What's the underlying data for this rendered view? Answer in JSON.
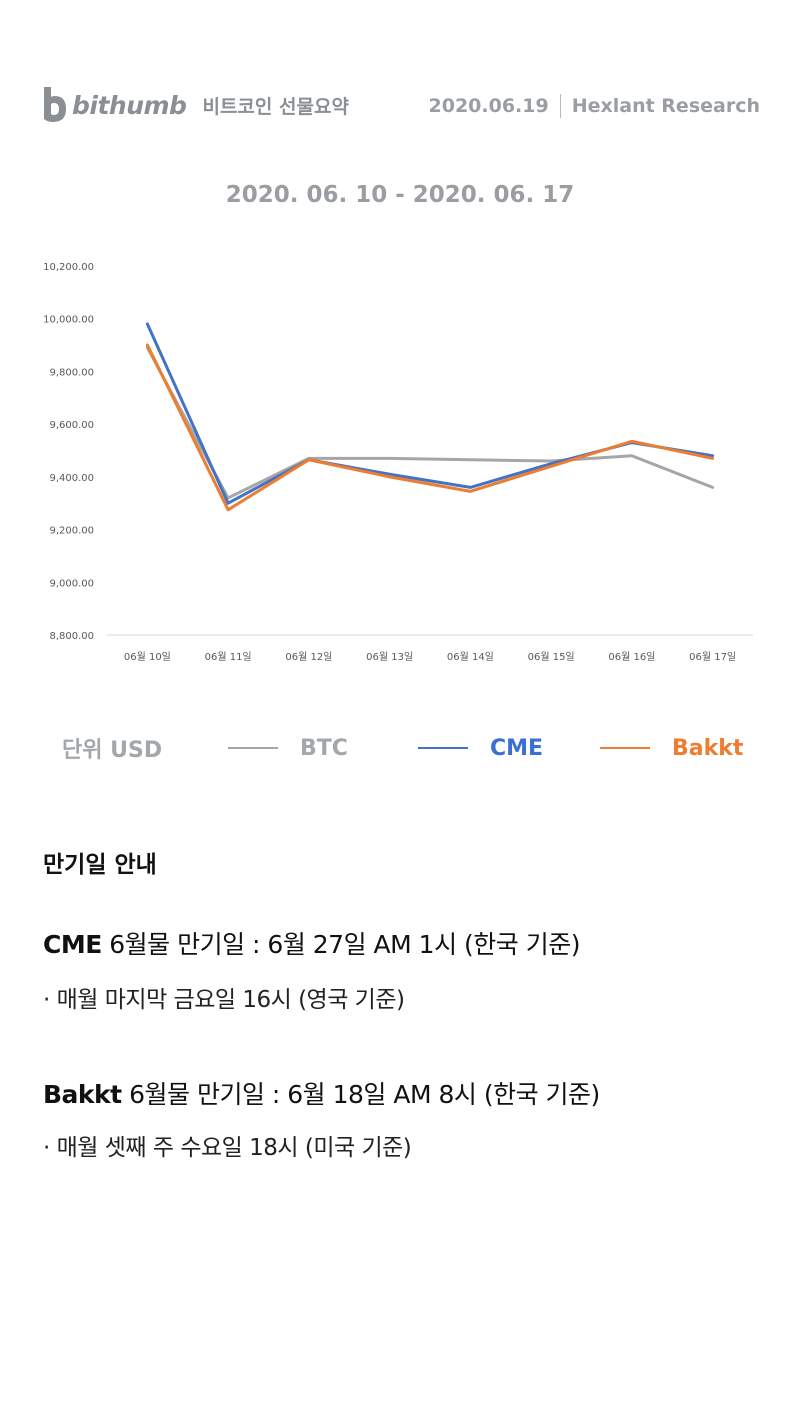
{
  "header": {
    "logo_text": "bithumb",
    "subtitle": "비트코인 선물요약",
    "date": "2020.06.19",
    "publisher": "Hexlant Research"
  },
  "date_range": "2020. 06. 10 - 2020. 06. 17",
  "chart_data": {
    "type": "line",
    "title": "",
    "x": [
      "06월 10일",
      "06월 11일",
      "06월 12일",
      "06월 13일",
      "06월 14일",
      "06월 15일",
      "06월 16일",
      "06월 17일"
    ],
    "yticks": [
      "10,200.00",
      "10,000.00",
      "9,800.00",
      "9,600.00",
      "9,400.00",
      "9,200.00",
      "9,000.00",
      "8,800.00"
    ],
    "ylim": [
      8800,
      10200
    ],
    "grid": false,
    "legend_position": "bottom",
    "series": [
      {
        "name": "BTC",
        "color": "#a6a6a6",
        "values": [
          9890,
          9320,
          9470,
          9470,
          9465,
          9460,
          9480,
          9360
        ]
      },
      {
        "name": "CME",
        "color": "#4472c4",
        "values": [
          9980,
          9300,
          9465,
          9410,
          9360,
          9450,
          9530,
          9480
        ]
      },
      {
        "name": "Bakkt",
        "color": "#ed7d31",
        "values": [
          9900,
          9275,
          9465,
          9400,
          9345,
          9440,
          9535,
          9470
        ]
      }
    ]
  },
  "legend": {
    "unit_label": "단위 USD",
    "items": [
      {
        "label": "BTC",
        "color": "#a6a6a6",
        "text_color": "#a3a7ab"
      },
      {
        "label": "CME",
        "color": "#4472c4",
        "text_color": "#3b6fd4"
      },
      {
        "label": "Bakkt",
        "color": "#ed7d31",
        "text_color": "#ed7d31"
      }
    ]
  },
  "notice": {
    "title": "만기일 안내",
    "cme": {
      "name": "CME",
      "text": " 6월물 만기일 : 6월 27일 AM 1시 (한국 기준)",
      "detail": "· 매월 마지막 금요일 16시 (영국 기준)"
    },
    "bakkt": {
      "name": "Bakkt",
      "text": " 6월물 만기일 : 6월 18일 AM 8시 (한국 기준)",
      "detail": "· 매월 셋째 주 수요일 18시 (미국 기준)"
    }
  }
}
